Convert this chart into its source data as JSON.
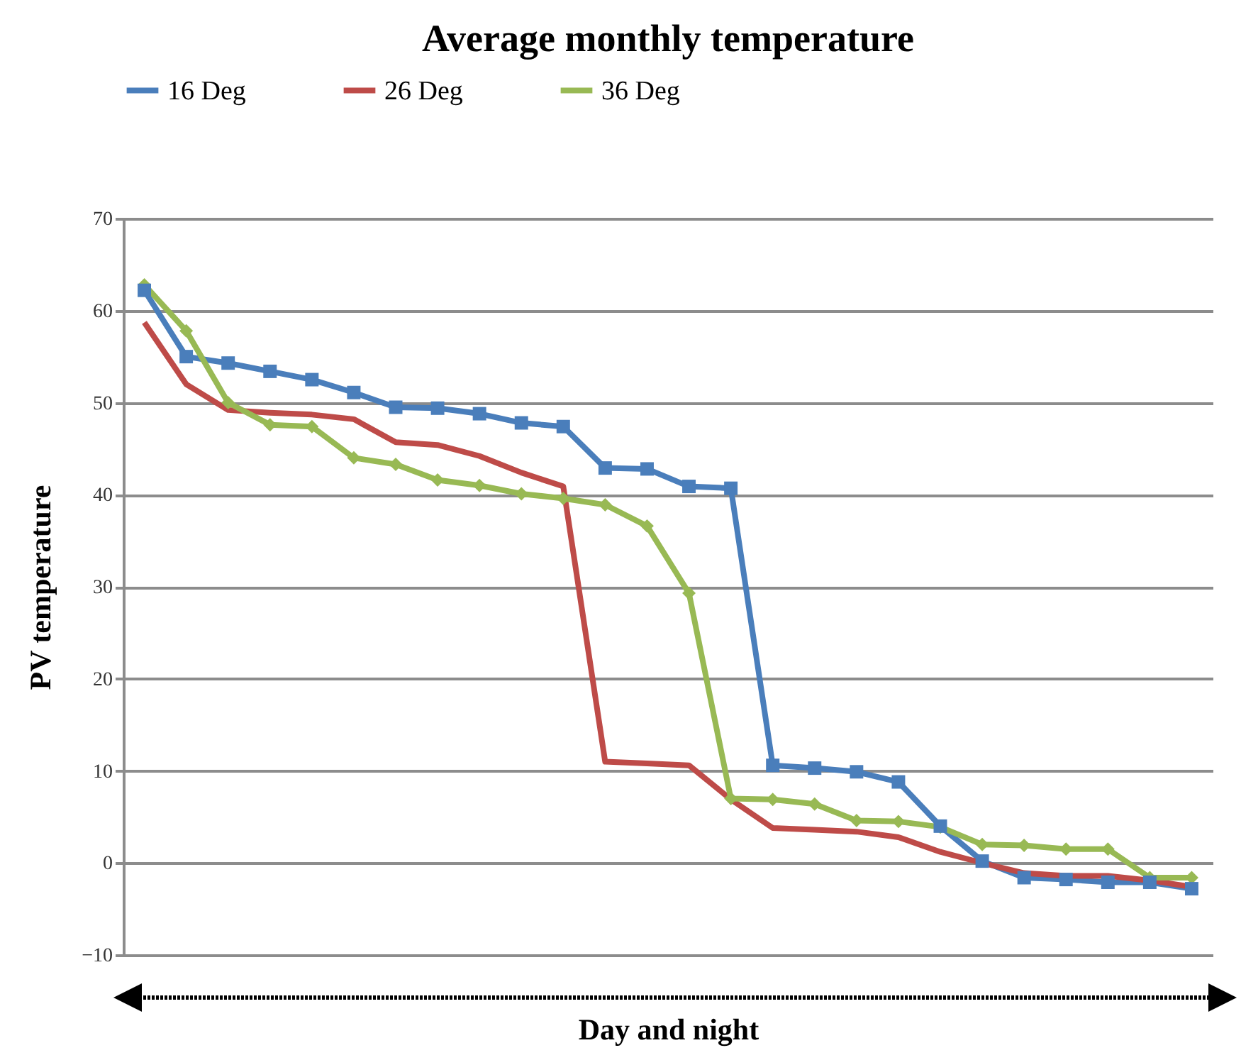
{
  "chart_data": {
    "type": "line",
    "title": "Average monthly temperature",
    "xlabel": "Day and night",
    "ylabel": "PV temperature",
    "categories": [
      null,
      null,
      null,
      null,
      null,
      null,
      null,
      null,
      null,
      null,
      null,
      null,
      null,
      null,
      null,
      null,
      null,
      null,
      null,
      null,
      null,
      null,
      null,
      null,
      null,
      null
    ],
    "ylim": [
      -10,
      70
    ],
    "yticks": [
      -10,
      0,
      10,
      20,
      30,
      40,
      50,
      60,
      70
    ],
    "grid": "y",
    "legend": "top",
    "line_style": "solid",
    "series": [
      {
        "name": "16 Deg",
        "color": "#4a7ebb",
        "marker": "square",
        "values": [
          62.2,
          55.0,
          54.3,
          53.4,
          52.5,
          51.1,
          49.5,
          49.4,
          48.8,
          47.8,
          47.4,
          42.9,
          42.8,
          40.9,
          40.7,
          10.6,
          10.3,
          9.9,
          8.8,
          4.0,
          0.2,
          -1.6,
          -1.8,
          -2.1,
          -2.1,
          -2.8
        ]
      },
      {
        "name": "26 Deg",
        "color": "#be4b48",
        "marker": "none",
        "values": [
          58.7,
          52.0,
          49.2,
          48.9,
          48.7,
          48.2,
          45.7,
          45.4,
          44.2,
          42.4,
          40.9,
          11.0,
          10.8,
          10.6,
          6.9,
          3.8,
          3.6,
          3.4,
          2.8,
          1.2,
          0.0,
          -1.1,
          -1.4,
          -1.4,
          -1.9,
          -2.6
        ]
      },
      {
        "name": "36 Deg",
        "color": "#98b954",
        "marker": "diamond",
        "values": [
          62.8,
          57.8,
          50.0,
          47.6,
          47.4,
          44.0,
          43.3,
          41.6,
          41.0,
          40.1,
          39.6,
          38.9,
          36.6,
          29.3,
          7.0,
          6.9,
          6.4,
          4.6,
          4.5,
          3.9,
          2.0,
          1.9,
          1.5,
          1.5,
          -1.6,
          -1.6
        ]
      }
    ]
  }
}
